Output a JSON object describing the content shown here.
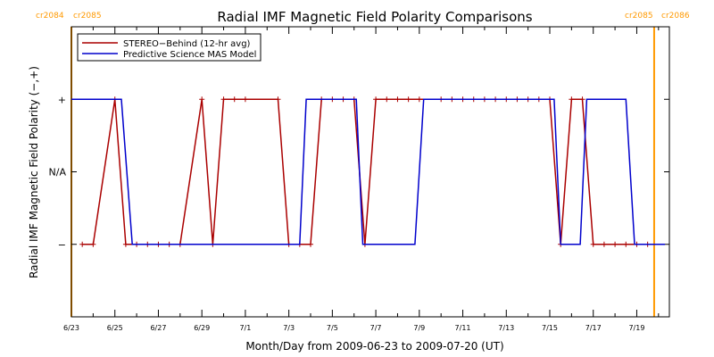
{
  "chart_data": {
    "type": "line",
    "title": "Radial IMF Magnetic Field Polarity Comparisons",
    "xlabel": "Month/Day from 2009-06-23 to 2009-07-20 (UT)",
    "ylabel": "Radial IMF Magnetic Field Polarity (−,+)",
    "xlim": [
      0,
      27.5
    ],
    "ylim": [
      -2,
      2
    ],
    "y_tick_values": [
      1,
      0,
      -1
    ],
    "y_tick_labels": [
      "+",
      "N/A",
      "−"
    ],
    "x_tick_values": [
      0,
      2,
      4,
      6,
      8,
      10,
      12,
      14,
      16,
      18,
      20,
      22,
      24,
      26
    ],
    "x_tick_labels": [
      "6/23",
      "6/25",
      "6/27",
      "6/29",
      "7/1",
      "7/3",
      "7/5",
      "7/7",
      "7/9",
      "7/11",
      "7/13",
      "7/15",
      "7/17",
      "7/19"
    ],
    "carrington_markers": [
      {
        "x": 0,
        "label_left": "cr2084",
        "label_right": "cr2085",
        "color": "#ff9900"
      },
      {
        "x": 26.8,
        "label_left": "cr2085",
        "label_right": "cr2086",
        "color": "#ff9900"
      }
    ],
    "legend_position": "top-left",
    "series": [
      {
        "name": "STEREO−Behind (12-hr avg)",
        "color": "#aa0000",
        "markers": true,
        "x": [
          0.5,
          1.0,
          2.0,
          2.5,
          3.0,
          3.5,
          4.0,
          4.5,
          5.0,
          6.0,
          6.5,
          7.0,
          7.5,
          8.0,
          9.5,
          10.0,
          10.5,
          11.0,
          11.5,
          12.0,
          12.5,
          13.0,
          13.5,
          14.0,
          14.5,
          15.0,
          15.5,
          16.0,
          17.0,
          17.5,
          18.0,
          18.5,
          19.0,
          19.5,
          20.0,
          20.5,
          21.0,
          21.5,
          22.0,
          22.5,
          23.0,
          23.5,
          24.0,
          24.5,
          25.0,
          25.5,
          26.0,
          26.5
        ],
        "y": [
          -1,
          -1,
          1,
          -1,
          -1,
          -1,
          -1,
          -1,
          -1,
          1,
          -1,
          1,
          1,
          1,
          1,
          -1,
          -1,
          -1,
          1,
          1,
          1,
          1,
          -1,
          1,
          1,
          1,
          1,
          1,
          1,
          1,
          1,
          1,
          1,
          1,
          1,
          1,
          1,
          1,
          1,
          -1,
          1,
          1,
          -1,
          -1,
          -1,
          -1,
          -1,
          -1
        ]
      },
      {
        "name": "Predictive Science MAS Model",
        "color": "#0000cc",
        "markers": false,
        "x": [
          0,
          2.3,
          2.8,
          10.5,
          10.8,
          13.1,
          13.4,
          15.8,
          16.2,
          22.2,
          22.5,
          23.4,
          23.7,
          25.5,
          25.9,
          27.3
        ],
        "y": [
          1,
          1,
          -1,
          -1,
          1,
          1,
          -1,
          -1,
          1,
          1,
          -1,
          -1,
          1,
          1,
          -1,
          -1
        ]
      }
    ]
  }
}
